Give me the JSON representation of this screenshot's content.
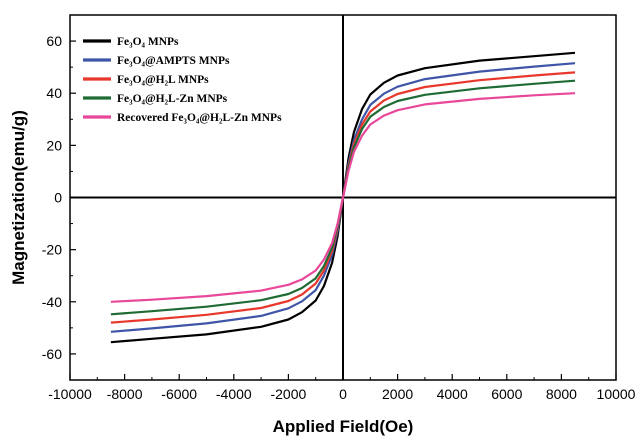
{
  "chart_data": {
    "type": "line",
    "xlabel": "Applied Field(Oe)",
    "ylabel": "Magnetization(emu/g)",
    "xlim": [
      -10000,
      10000
    ],
    "ylim": [
      -70,
      70
    ],
    "xticks": [
      -10000,
      -8000,
      -6000,
      -4000,
      -2000,
      0,
      2000,
      4000,
      6000,
      8000,
      10000
    ],
    "yticks": [
      -60,
      -40,
      -20,
      0,
      20,
      40,
      60
    ],
    "grid": false,
    "legend_position": "top-left",
    "zero_lines": true,
    "series": [
      {
        "name": "Fe₃O₄ MNPs",
        "color": "#000000",
        "x": [
          -8500,
          -7000,
          -5000,
          -3000,
          -2000,
          -1500,
          -1000,
          -700,
          -400,
          -200,
          0,
          200,
          400,
          700,
          1000,
          1500,
          2000,
          3000,
          5000,
          7000,
          8500
        ],
        "y": [
          -55.5,
          -54.2,
          -52.5,
          -49.6,
          -46.8,
          -44.0,
          -39.5,
          -34.0,
          -25.0,
          -15.0,
          0,
          15.0,
          25.0,
          34.0,
          39.5,
          44.0,
          46.8,
          49.6,
          52.5,
          54.2,
          55.5
        ]
      },
      {
        "name": "Fe₃O₄@AMPTS MNPs",
        "color": "#3f55a8",
        "x": [
          -8500,
          -7000,
          -5000,
          -3000,
          -2000,
          -1500,
          -1000,
          -700,
          -400,
          -200,
          0,
          200,
          400,
          700,
          1000,
          1500,
          2000,
          3000,
          5000,
          7000,
          8500
        ],
        "y": [
          -51.5,
          -50.2,
          -48.3,
          -45.4,
          -42.5,
          -39.8,
          -35.5,
          -30.0,
          -22.0,
          -13.0,
          0,
          13.0,
          22.0,
          30.0,
          35.5,
          39.8,
          42.5,
          45.4,
          48.3,
          50.2,
          51.5
        ]
      },
      {
        "name": "Fe₃O₄@H₂L MNPs",
        "color": "#e8382d",
        "x": [
          -8500,
          -7000,
          -5000,
          -3000,
          -2000,
          -1500,
          -1000,
          -700,
          -400,
          -200,
          0,
          200,
          400,
          700,
          1000,
          1500,
          2000,
          3000,
          5000,
          7000,
          8500
        ],
        "y": [
          -48.0,
          -46.8,
          -45.0,
          -42.4,
          -39.7,
          -37.2,
          -33.0,
          -28.0,
          -20.5,
          -12.0,
          0,
          12.0,
          20.5,
          28.0,
          33.0,
          37.2,
          39.7,
          42.4,
          45.0,
          46.8,
          48.0
        ]
      },
      {
        "name": "Fe₃O₄@H₂L-Zn MNPs",
        "color": "#1f6b34",
        "x": [
          -8500,
          -7000,
          -5000,
          -3000,
          -2000,
          -1500,
          -1000,
          -700,
          -400,
          -200,
          0,
          200,
          400,
          700,
          1000,
          1500,
          2000,
          3000,
          5000,
          7000,
          8500
        ],
        "y": [
          -44.8,
          -43.6,
          -41.9,
          -39.4,
          -37.0,
          -34.7,
          -31.0,
          -26.3,
          -19.2,
          -11.2,
          0,
          11.2,
          19.2,
          26.3,
          31.0,
          34.7,
          37.0,
          39.4,
          41.9,
          43.6,
          44.8
        ]
      },
      {
        "name": "Recovered Fe₃O₄@H₂L-Zn MNPs",
        "color": "#e8479a",
        "x": [
          -8500,
          -7000,
          -5000,
          -3000,
          -2000,
          -1500,
          -1000,
          -700,
          -400,
          -200,
          0,
          200,
          400,
          700,
          1000,
          1500,
          2000,
          3000,
          5000,
          7000,
          8500
        ],
        "y": [
          -40.0,
          -39.2,
          -37.8,
          -35.7,
          -33.5,
          -31.4,
          -28.0,
          -23.8,
          -17.5,
          -10.2,
          0,
          10.2,
          17.5,
          23.8,
          28.0,
          31.4,
          33.5,
          35.7,
          37.8,
          39.2,
          40.0
        ]
      }
    ]
  }
}
